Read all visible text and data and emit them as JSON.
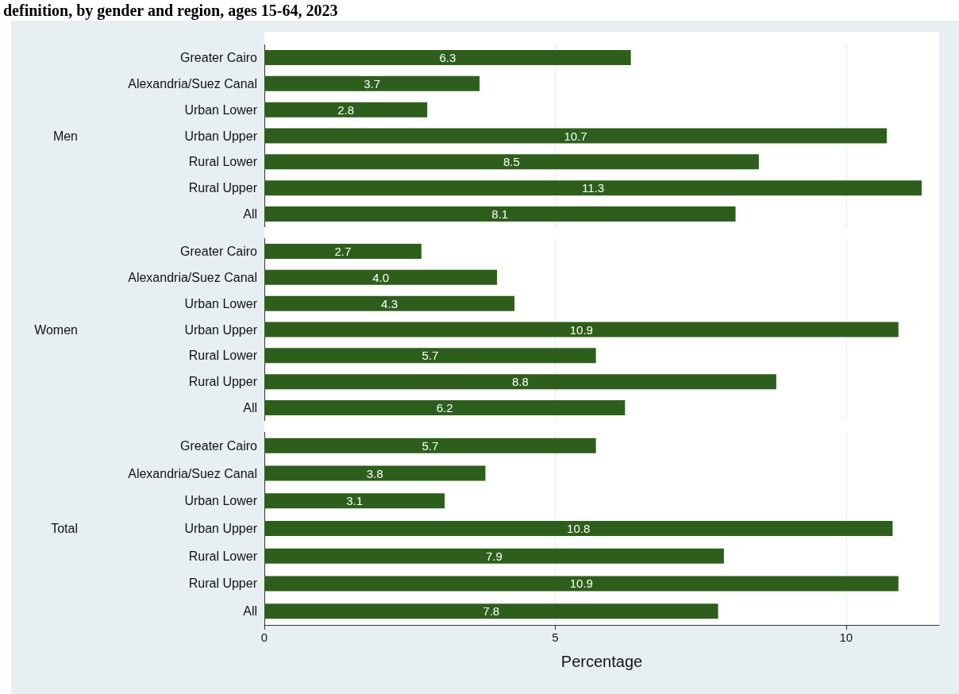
{
  "chart_data": [
    {
      "type": "bar",
      "orientation": "horizontal",
      "title": "definition, by gender and region, ages 15-64, 2023",
      "ylabel": "Men",
      "categories": [
        "Greater Cairo",
        "Alexandria/Suez Canal",
        "Urban Lower",
        "Urban Upper",
        "Rural Lower",
        "Rural Upper",
        "All"
      ],
      "series": [
        {
          "color": "#2e5e1c",
          "values": [
            6.3,
            3.7,
            2.8,
            10.7,
            8.5,
            11.3,
            8.1
          ]
        }
      ],
      "xlim": [
        0,
        11.6
      ],
      "xticks": [
        0,
        5,
        10
      ],
      "grid": "x",
      "tick_labels": "y",
      "data_labels": true
    },
    {
      "type": "bar",
      "orientation": "horizontal",
      "ylabel": "Women",
      "categories": [
        "Greater Cairo",
        "Alexandria/Suez Canal",
        "Urban Lower",
        "Urban Upper",
        "Rural Lower",
        "Rural Upper",
        "All"
      ],
      "series": [
        {
          "color": "#2e5e1c",
          "values": [
            2.7,
            4.0,
            4.3,
            10.9,
            5.7,
            8.8,
            6.2
          ],
          "value_labels": [
            "2.7",
            "4.0",
            "4.3",
            "10.9",
            "5.7",
            "8.8",
            "6.2"
          ]
        }
      ],
      "xlim": [
        0,
        11.6
      ],
      "xticks": [
        0,
        5,
        10
      ],
      "grid": "x",
      "tick_labels": "y"
    },
    {
      "type": "bar",
      "orientation": "horizontal",
      "ylabel": "Total",
      "xlabel": "Percentage",
      "categories": [
        "Greater Cairo",
        "Alexandria/Suez Canal",
        "Urban Lower",
        "Urban Upper",
        "Rural Lower",
        "Rural Upper",
        "All"
      ],
      "series": [
        {
          "color": "#2e5e1c",
          "values": [
            5.7,
            3.8,
            3.1,
            10.8,
            7.9,
            10.9,
            7.8
          ]
        }
      ],
      "xlim": [
        0,
        11.6
      ],
      "xticks": [
        0,
        5,
        10
      ],
      "grid": "x",
      "data_labels": true
    }
  ]
}
